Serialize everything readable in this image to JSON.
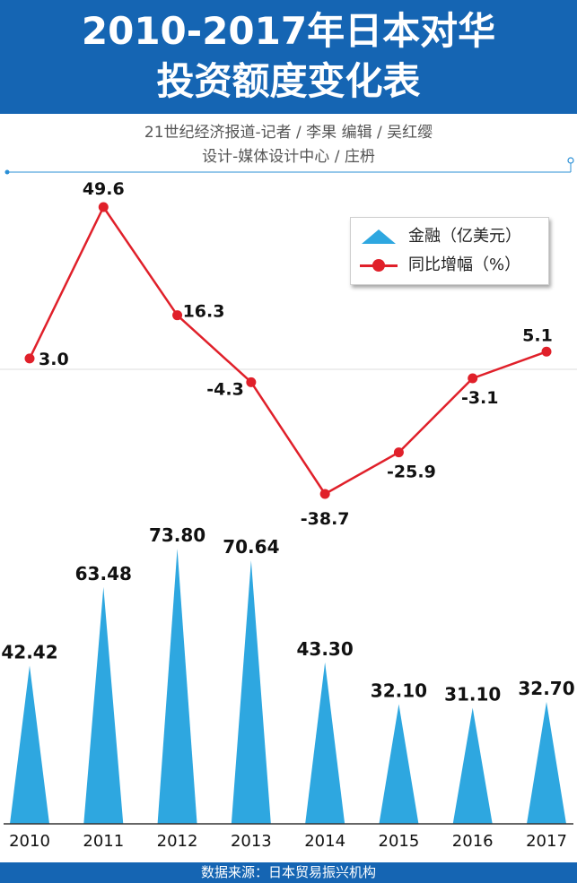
{
  "header": {
    "title_line1": "2010-2017年日本对华",
    "title_line2": "投资额度变化表"
  },
  "credits": {
    "line1": "21世纪经济报道-记者 / 李果   编辑 / 吴红缨",
    "line2": "设计-媒体设计中心 / 庄枬"
  },
  "legend": {
    "finance_label": "金融（亿美元）",
    "growth_label": "同比增幅（%）"
  },
  "source": "数据来源：日本贸易振兴机构",
  "colors": {
    "header_blue": "#1565b3",
    "bar_blue": "#2ea7e0",
    "line_red": "#e0202a"
  },
  "chart_data": {
    "type": "bar",
    "categories": [
      "2010",
      "2011",
      "2012",
      "2013",
      "2014",
      "2015",
      "2016",
      "2017"
    ],
    "series": [
      {
        "name": "金融（亿美元）",
        "kind": "triangle-bar",
        "values": [
          42.42,
          63.48,
          73.8,
          70.64,
          43.3,
          32.1,
          31.1,
          32.7
        ],
        "labels": [
          "42.42",
          "63.48",
          "73.80",
          "70.64",
          "43.30",
          "32.10",
          "31.10",
          "32.70"
        ]
      },
      {
        "name": "同比增幅（%）",
        "kind": "line",
        "values": [
          3.0,
          49.6,
          16.3,
          -4.3,
          -38.7,
          -25.9,
          -3.1,
          5.1
        ],
        "labels": [
          "3.0",
          "49.6",
          "16.3",
          "-4.3",
          "-38.7",
          "-25.9",
          "-3.1",
          "5.1"
        ]
      }
    ],
    "title": "2010-2017年日本对华投资额度变化表",
    "xlabel": "",
    "ylabel": "",
    "grid": false,
    "legend_position": "top-right"
  }
}
